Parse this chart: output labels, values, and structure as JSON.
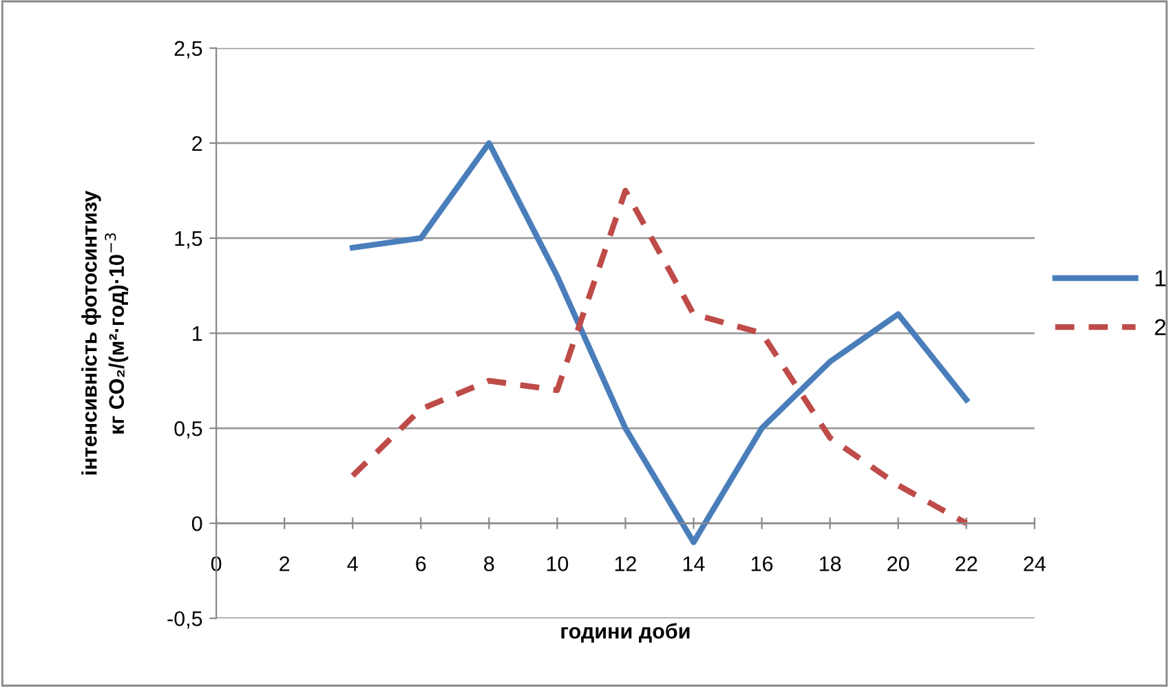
{
  "chart_data": {
    "type": "line",
    "xlabel": "години доби",
    "ylabel": "інтенсивність фотосинтизу\nкг CO₂/(м²·год)·10$^{−3}$",
    "x": [
      4,
      6,
      8,
      10,
      12,
      14,
      16,
      18,
      20,
      22
    ],
    "series": [
      {
        "name": "1",
        "color": "#4a7ebb",
        "line_style": "solid",
        "values": [
          1.45,
          1.5,
          2.0,
          1.3,
          0.5,
          -0.1,
          0.5,
          0.85,
          1.1,
          0.65
        ]
      },
      {
        "name": "2",
        "color": "#be4b48",
        "line_style": "dashed",
        "values": [
          0.25,
          0.6,
          0.75,
          0.7,
          1.75,
          1.1,
          1.0,
          0.45,
          0.2,
          0.0
        ]
      }
    ],
    "xlim": [
      0,
      24
    ],
    "xticks": [
      0,
      2,
      4,
      6,
      8,
      10,
      12,
      14,
      16,
      18,
      20,
      22,
      24
    ],
    "ylim": [
      -0.5,
      2.5
    ],
    "yticks": [
      {
        "value": -0.5,
        "label": "-0,5"
      },
      0,
      {
        "value": 0.5,
        "label": "0,5"
      },
      1,
      {
        "value": 1.5,
        "label": "1,5"
      },
      2,
      {
        "value": 2.5,
        "label": "2,5"
      }
    ],
    "grid": "y",
    "legend": "right",
    "marker": "none"
  }
}
